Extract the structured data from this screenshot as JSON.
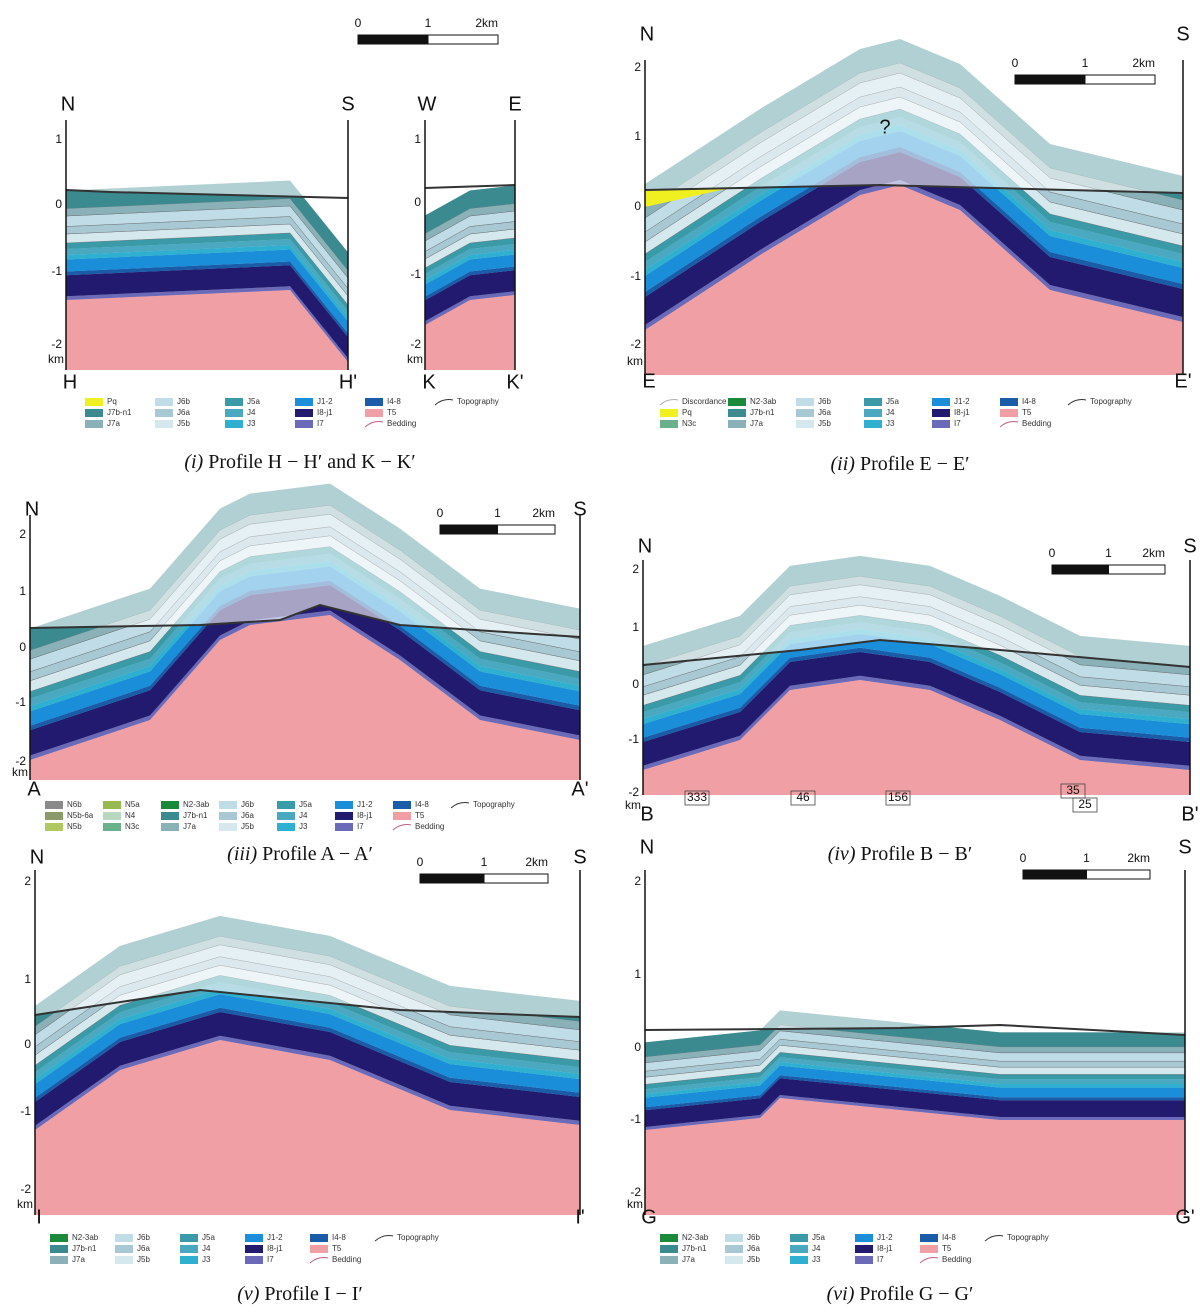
{
  "unit_colors": {
    "Discordance": "#b0b0b0",
    "Pq": "#f0f020",
    "N3c": "#6ab08a",
    "N2-3ab": "#1a8a3a",
    "J7b-n1": "#3a8a90",
    "J7a": "#8ab0b8",
    "J6b": "#c0dce6",
    "J6a": "#a8c8d4",
    "J5b": "#d4e8ee",
    "J5a": "#3a9aa8",
    "J4": "#4aa8c0",
    "J3": "#30b0d0",
    "J1-2": "#1a8ed8",
    "I8-j1": "#221a6e",
    "I7": "#6a6ab8",
    "I4-8": "#1a5ca8",
    "T5": "#f0a0a4",
    "N6b": "#8a8a8a",
    "N5b-6a": "#8a9a6a",
    "N5b": "#b0c860",
    "N5a": "#98b850",
    "N4": "#b8d8c0",
    "Topography": "#333333",
    "Bedding": "#c06080"
  },
  "panels": [
    {
      "caption_label": "(i)",
      "caption": "Profile H − H′ and K − K′",
      "scale": [
        "0",
        "1",
        "2km"
      ],
      "sections": [
        {
          "left": "N",
          "right": "S",
          "yticks": [
            "1",
            "0",
            "-1",
            "-2"
          ],
          "unit": "km",
          "ends": [
            "H",
            "H'"
          ]
        },
        {
          "left": "W",
          "right": "E",
          "yticks": [
            "1",
            "0",
            "-1",
            "-2"
          ],
          "unit": "km",
          "ends": [
            "K",
            "K'"
          ]
        }
      ],
      "legend": [
        [
          "Pq",
          "J7b-n1",
          "J7a"
        ],
        [
          "J6b",
          "J6a",
          "J5b"
        ],
        [
          "J5a",
          "J4",
          "J3"
        ],
        [
          "J1-2",
          "I8-j1",
          "I7"
        ],
        [
          "I4-8",
          "T5",
          "Bedding"
        ],
        [
          "Topography"
        ]
      ],
      "notes": []
    },
    {
      "caption_label": "(ii)",
      "caption": "Profile E − E′",
      "scale": [
        "0",
        "1",
        "2km"
      ],
      "sections": [
        {
          "left": "N",
          "right": "S",
          "yticks": [
            "2",
            "1",
            "0",
            "-1",
            "-2"
          ],
          "unit": "km",
          "ends": [
            "E",
            "E'"
          ]
        }
      ],
      "legend": [
        [
          "Discordance",
          "Pq",
          "N3c"
        ],
        [
          "N2-3ab",
          "J7b-n1",
          "J7a"
        ],
        [
          "J6b",
          "J6a",
          "J5b"
        ],
        [
          "J5a",
          "J4",
          "J3"
        ],
        [
          "J1-2",
          "I8-j1",
          "I7"
        ],
        [
          "I4-8",
          "T5",
          "Bedding"
        ],
        [
          "Topography"
        ]
      ],
      "notes": [
        "?"
      ]
    },
    {
      "caption_label": "(iii)",
      "caption": "Profile A − A′",
      "scale": [
        "0",
        "1",
        "2km"
      ],
      "sections": [
        {
          "left": "N",
          "right": "S",
          "yticks": [
            "2",
            "1",
            "0",
            "-1",
            "-2"
          ],
          "unit": "km",
          "ends": [
            "A",
            "A'"
          ]
        }
      ],
      "legend": [
        [
          "N6b",
          "N5b-6a",
          "N5b"
        ],
        [
          "N5a",
          "N4",
          "N3c"
        ],
        [
          "N2-3ab",
          "J7b-n1",
          "J7a"
        ],
        [
          "J6b",
          "J6a",
          "J5b"
        ],
        [
          "J5a",
          "J4",
          "J3"
        ],
        [
          "J1-2",
          "I8-j1",
          "I7"
        ],
        [
          "I4-8",
          "T5",
          "Bedding"
        ],
        [
          "Topography"
        ]
      ],
      "notes": []
    },
    {
      "caption_label": "(iv)",
      "caption": "Profile B − B′",
      "scale": [
        "0",
        "1",
        "2km"
      ],
      "sections": [
        {
          "left": "N",
          "right": "S",
          "yticks": [
            "2",
            "1",
            "0",
            "-1",
            "-2"
          ],
          "unit": "km",
          "ends": [
            "B",
            "B'"
          ]
        }
      ],
      "legend": [],
      "notes": [
        "333",
        "46",
        "156",
        "35",
        "25"
      ]
    },
    {
      "caption_label": "(v)",
      "caption": "Profile I − I′",
      "scale": [
        "0",
        "1",
        "2km"
      ],
      "sections": [
        {
          "left": "N",
          "right": "S",
          "yticks": [
            "2",
            "1",
            "0",
            "-1",
            "-2"
          ],
          "unit": "km",
          "ends": [
            "I",
            "I'"
          ]
        }
      ],
      "legend": [
        [
          "N2-3ab",
          "J7b-n1",
          "J7a"
        ],
        [
          "J6b",
          "J6a",
          "J5b"
        ],
        [
          "J5a",
          "J4",
          "J3"
        ],
        [
          "J1-2",
          "I8-j1",
          "I7"
        ],
        [
          "I4-8",
          "T5",
          "Bedding"
        ],
        [
          "Topography"
        ]
      ],
      "notes": []
    },
    {
      "caption_label": "(vi)",
      "caption": "Profile G − G′",
      "scale": [
        "0",
        "1",
        "2km"
      ],
      "sections": [
        {
          "left": "N",
          "right": "S",
          "yticks": [
            "2",
            "1",
            "0",
            "-1",
            "-2"
          ],
          "unit": "km",
          "ends": [
            "G",
            "G'"
          ]
        }
      ],
      "legend": [
        [
          "N2-3ab",
          "J7b-n1",
          "J7a"
        ],
        [
          "J6b",
          "J6a",
          "J5b"
        ],
        [
          "J5a",
          "J4",
          "J3"
        ],
        [
          "J1-2",
          "I8-j1",
          "I7"
        ],
        [
          "I4-8",
          "T5",
          "Bedding"
        ],
        [
          "Topography"
        ]
      ],
      "notes": []
    }
  ]
}
